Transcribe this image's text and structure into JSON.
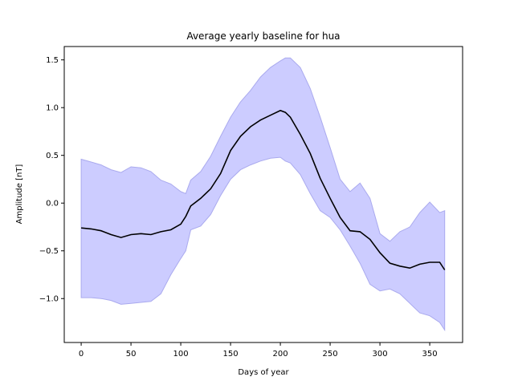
{
  "chart_data": {
    "type": "line",
    "title": "Average yearly baseline for hua",
    "xlabel": "Days of year",
    "ylabel": "Amplitude [nT]",
    "xlim": [
      -17,
      383
    ],
    "ylim": [
      -1.46,
      1.64
    ],
    "xticks": [
      0,
      50,
      100,
      150,
      200,
      250,
      300,
      350
    ],
    "xtick_labels": [
      "0",
      "50",
      "100",
      "150",
      "200",
      "250",
      "300",
      "350"
    ],
    "yticks": [
      -1.0,
      -0.5,
      0.0,
      0.5,
      1.0,
      1.5
    ],
    "ytick_labels": [
      "−1.0",
      "−0.5",
      "0.0",
      "0.5",
      "1.0",
      "1.5"
    ],
    "grid": false,
    "legend": false,
    "colors": {
      "line": "#000000",
      "band_fill": "#ccccff",
      "band_edge": "#aaaaee"
    },
    "mean": {
      "x": [
        0,
        10,
        20,
        30,
        40,
        50,
        60,
        70,
        80,
        90,
        100,
        105,
        110,
        120,
        130,
        140,
        150,
        160,
        170,
        180,
        190,
        200,
        205,
        210,
        220,
        230,
        240,
        250,
        260,
        270,
        280,
        290,
        300,
        310,
        320,
        330,
        340,
        350,
        360,
        365
      ],
      "y": [
        -0.26,
        -0.27,
        -0.29,
        -0.33,
        -0.36,
        -0.33,
        -0.32,
        -0.33,
        -0.3,
        -0.28,
        -0.22,
        -0.14,
        -0.03,
        0.05,
        0.15,
        0.31,
        0.55,
        0.7,
        0.8,
        0.87,
        0.92,
        0.97,
        0.95,
        0.9,
        0.72,
        0.52,
        0.26,
        0.05,
        -0.15,
        -0.29,
        -0.3,
        -0.38,
        -0.52,
        -0.63,
        -0.66,
        -0.68,
        -0.64,
        -0.62,
        -0.62,
        -0.7
      ]
    },
    "band": {
      "x": [
        0,
        10,
        20,
        30,
        40,
        50,
        60,
        70,
        80,
        90,
        100,
        105,
        110,
        120,
        130,
        140,
        150,
        160,
        170,
        180,
        190,
        200,
        205,
        210,
        220,
        230,
        240,
        250,
        260,
        270,
        280,
        290,
        300,
        310,
        320,
        330,
        340,
        350,
        360,
        365
      ],
      "upper": [
        0.46,
        0.43,
        0.4,
        0.35,
        0.32,
        0.38,
        0.37,
        0.33,
        0.24,
        0.2,
        0.12,
        0.1,
        0.24,
        0.33,
        0.49,
        0.7,
        0.9,
        1.06,
        1.18,
        1.32,
        1.42,
        1.49,
        1.52,
        1.52,
        1.42,
        1.2,
        0.9,
        0.58,
        0.25,
        0.12,
        0.21,
        0.05,
        -0.32,
        -0.4,
        -0.3,
        -0.25,
        -0.1,
        0.01,
        -0.1,
        -0.08
      ],
      "lower": [
        -0.99,
        -0.99,
        -1.0,
        -1.02,
        -1.06,
        -1.05,
        -1.04,
        -1.03,
        -0.95,
        -0.75,
        -0.58,
        -0.5,
        -0.28,
        -0.24,
        -0.12,
        0.08,
        0.25,
        0.35,
        0.4,
        0.44,
        0.47,
        0.48,
        0.44,
        0.42,
        0.3,
        0.1,
        -0.08,
        -0.15,
        -0.28,
        -0.45,
        -0.63,
        -0.85,
        -0.92,
        -0.9,
        -0.95,
        -1.05,
        -1.15,
        -1.18,
        -1.25,
        -1.33
      ]
    }
  }
}
